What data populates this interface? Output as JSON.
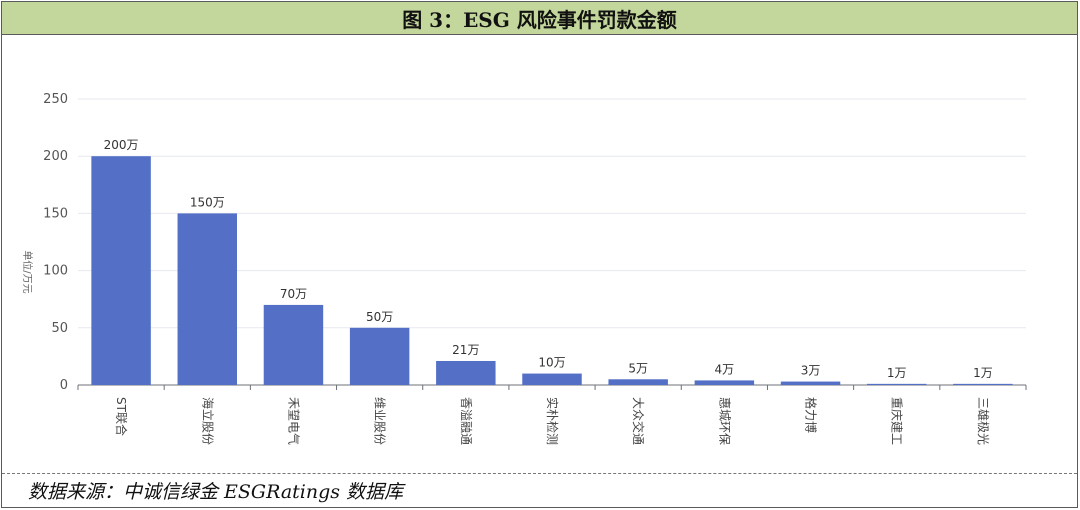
{
  "figure": {
    "title": "图 3：ESG 风险事件罚款金额",
    "source": "数据来源：中诚信绿金 ESGRatings 数据库"
  },
  "chart_data": {
    "type": "bar",
    "ylabel": "单位/万元",
    "xlabel": "",
    "ylim": [
      0,
      250
    ],
    "yticks": [
      0,
      50,
      100,
      150,
      200,
      250
    ],
    "grid": true,
    "bar_color": "#5470c6",
    "categories": [
      "ST联合",
      "海立股份",
      "禾望电气",
      "维业股份",
      "香溢融通",
      "实朴检测",
      "大众交通",
      "惠城环保",
      "格力博",
      "重庆建工",
      "三雄极光"
    ],
    "values": [
      200,
      150,
      70,
      50,
      21,
      10,
      5,
      4,
      3,
      1,
      1
    ],
    "data_labels": [
      "200万",
      "150万",
      "70万",
      "50万",
      "21万",
      "10万",
      "5万",
      "4万",
      "3万",
      "1万",
      "1万"
    ]
  }
}
